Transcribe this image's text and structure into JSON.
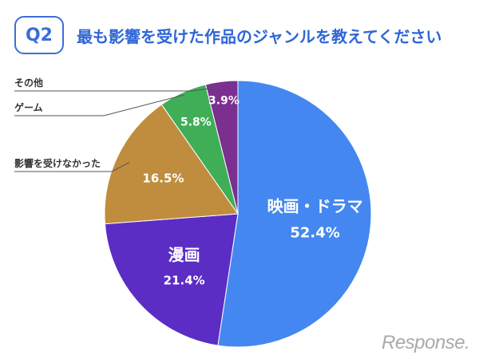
{
  "header": {
    "badge": "Q2",
    "question": "最も影響を受けた作品のジャンルを教えてください"
  },
  "chart_data": {
    "type": "pie",
    "categories": [
      "映画・ドラマ",
      "漫画",
      "影響を受けなかった",
      "ゲーム",
      "その他"
    ],
    "values": [
      52.4,
      21.4,
      16.5,
      5.8,
      3.9
    ],
    "value_labels": [
      "52.4%",
      "21.4%",
      "16.5%",
      "5.8%",
      "3.9%"
    ],
    "colors": [
      "#4487f0",
      "#5b2dc4",
      "#c08d3e",
      "#3fae57",
      "#7a2f91"
    ],
    "start_angle_deg": 0,
    "direction": "clockwise",
    "inside_name_labels": [
      "映画・ドラマ",
      "漫画"
    ],
    "callout_labels": [
      "その他",
      "ゲーム",
      "影響を受けなかった"
    ]
  },
  "watermark": "Response."
}
